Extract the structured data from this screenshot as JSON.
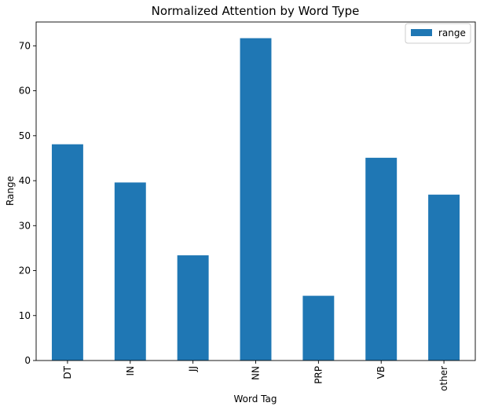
{
  "chart_data": {
    "type": "bar",
    "title": "Normalized Attention by Word Type",
    "xlabel": "Word Tag",
    "ylabel": "Range",
    "categories": [
      "DT",
      "IN",
      "JJ",
      "NN",
      "PRP",
      "VB",
      "other"
    ],
    "series": [
      {
        "name": "range",
        "values": [
          48.1,
          39.6,
          23.4,
          71.7,
          14.4,
          45.1,
          36.9
        ],
        "color": "#1f77b4"
      }
    ],
    "ylim": [
      0,
      75.3
    ],
    "yticks": [
      0,
      10,
      20,
      30,
      40,
      50,
      60,
      70
    ],
    "grid": false,
    "legend": "top-right"
  }
}
